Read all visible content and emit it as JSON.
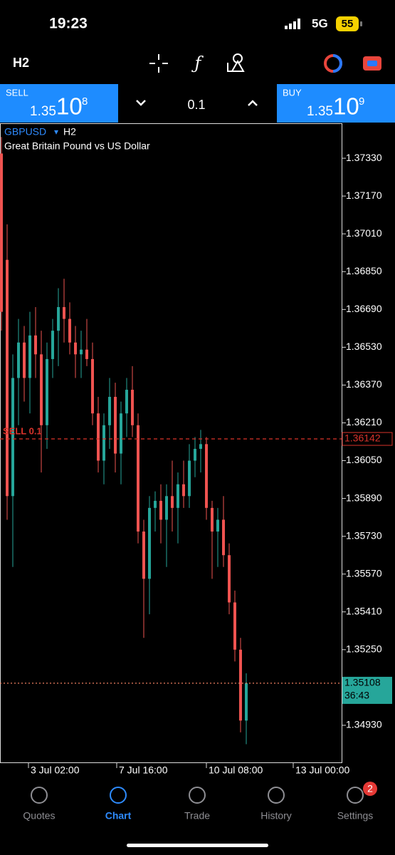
{
  "status_bar": {
    "time": "19:23",
    "network": "5G",
    "battery": "55"
  },
  "toolbar": {
    "timeframe": "H2"
  },
  "trade_panel": {
    "sell_label": "SELL",
    "sell_big": "1.35",
    "sell_pips": "10",
    "sell_point": "8",
    "lot": "0.1",
    "buy_label": "BUY",
    "buy_big": "1.35",
    "buy_pips": "10",
    "buy_point": "9"
  },
  "chart_data": {
    "type": "candlestick",
    "symbol": "GBPUSD",
    "symbol_arrow": "▾",
    "timeframe": "H2",
    "description": "Great Britain Pound vs US Dollar",
    "up_color": "#26a69a",
    "down_color": "#ef5350",
    "open": [
      1.3735,
      1.369,
      1.359,
      1.364,
      1.3655,
      1.364,
      1.3658,
      1.365,
      1.362,
      1.3648,
      1.366,
      1.367,
      1.3665,
      1.3655,
      1.365,
      1.3652,
      1.3648,
      1.3625,
      1.3605,
      1.362,
      1.3632,
      1.3608,
      1.3625,
      1.3635,
      1.362,
      1.3575,
      1.3555,
      1.3585,
      1.3588,
      1.358,
      1.359,
      1.3585,
      1.3595,
      1.359,
      1.3605,
      1.361,
      1.3612,
      1.3585,
      1.3575,
      1.358,
      1.3565,
      1.3545,
      1.3525,
      1.3495
    ],
    "high": [
      1.3742,
      1.3705,
      1.365,
      1.3665,
      1.3662,
      1.3668,
      1.367,
      1.366,
      1.3655,
      1.3665,
      1.3678,
      1.3682,
      1.3672,
      1.3662,
      1.366,
      1.3665,
      1.3655,
      1.3632,
      1.3625,
      1.364,
      1.3638,
      1.363,
      1.364,
      1.3645,
      1.3625,
      1.358,
      1.359,
      1.3592,
      1.3595,
      1.3595,
      1.3605,
      1.36,
      1.3605,
      1.3612,
      1.3615,
      1.3618,
      1.3615,
      1.3588,
      1.3585,
      1.359,
      1.357,
      1.355,
      1.353,
      1.3515
    ],
    "low": [
      1.366,
      1.358,
      1.356,
      1.362,
      1.363,
      1.3625,
      1.364,
      1.36,
      1.361,
      1.364,
      1.3645,
      1.3655,
      1.365,
      1.364,
      1.364,
      1.3645,
      1.362,
      1.36,
      1.3595,
      1.361,
      1.36,
      1.3595,
      1.3615,
      1.3615,
      1.357,
      1.353,
      1.354,
      1.3575,
      1.357,
      1.356,
      1.3575,
      1.357,
      1.3585,
      1.3585,
      1.3598,
      1.36,
      1.358,
      1.3555,
      1.356,
      1.356,
      1.354,
      1.352,
      1.349,
      1.3485
    ],
    "close": [
      1.3668,
      1.359,
      1.364,
      1.3655,
      1.364,
      1.3658,
      1.365,
      1.362,
      1.3648,
      1.366,
      1.367,
      1.3665,
      1.3655,
      1.365,
      1.3652,
      1.3648,
      1.3625,
      1.3605,
      1.362,
      1.3632,
      1.3608,
      1.3625,
      1.3635,
      1.362,
      1.3575,
      1.3555,
      1.3585,
      1.3588,
      1.358,
      1.359,
      1.3585,
      1.3595,
      1.359,
      1.3605,
      1.361,
      1.3612,
      1.3585,
      1.3575,
      1.358,
      1.3565,
      1.3545,
      1.3525,
      1.3495,
      1.35108
    ],
    "xlim": [
      -0.25,
      59.75
    ],
    "xticks": [
      {
        "value": 4.75,
        "label": "3 Jul 02:00"
      },
      {
        "value": 20.25,
        "label": "7 Jul 16:00"
      },
      {
        "value": 36,
        "label": "10 Jul 08:00"
      },
      {
        "value": 51.25,
        "label": "13 Jul 00:00"
      }
    ],
    "ylim": [
      1.34773,
      1.37475
    ],
    "yticks": [
      {
        "value": 1.3733,
        "label": "1.37330"
      },
      {
        "value": 1.3717,
        "label": "1.37170"
      },
      {
        "value": 1.3701,
        "label": "1.37010"
      },
      {
        "value": 1.3685,
        "label": "1.36850"
      },
      {
        "value": 1.3669,
        "label": "1.36690"
      },
      {
        "value": 1.3653,
        "label": "1.36530"
      },
      {
        "value": 1.3637,
        "label": "1.36370"
      },
      {
        "value": 1.3621,
        "label": "1.36210"
      },
      {
        "value": 1.3605,
        "label": "1.36050"
      },
      {
        "value": 1.3589,
        "label": "1.35890"
      },
      {
        "value": 1.3573,
        "label": "1.35730"
      },
      {
        "value": 1.3557,
        "label": "1.35570"
      },
      {
        "value": 1.3541,
        "label": "1.35410"
      },
      {
        "value": 1.3525,
        "label": "1.35250"
      },
      {
        "value": 1.3493,
        "label": "1.34930"
      }
    ],
    "order_line": {
      "value": 1.36142,
      "text": "SELL 0.1",
      "color": "#d9332b"
    },
    "price_line": {
      "value": 1.35108,
      "countdown": "36:43",
      "color": "#f08060",
      "label_color": "#26a69a"
    }
  },
  "nav": {
    "items": [
      "Quotes",
      "Chart",
      "Trade",
      "History",
      "Settings"
    ],
    "active": 1,
    "badge": "2"
  }
}
